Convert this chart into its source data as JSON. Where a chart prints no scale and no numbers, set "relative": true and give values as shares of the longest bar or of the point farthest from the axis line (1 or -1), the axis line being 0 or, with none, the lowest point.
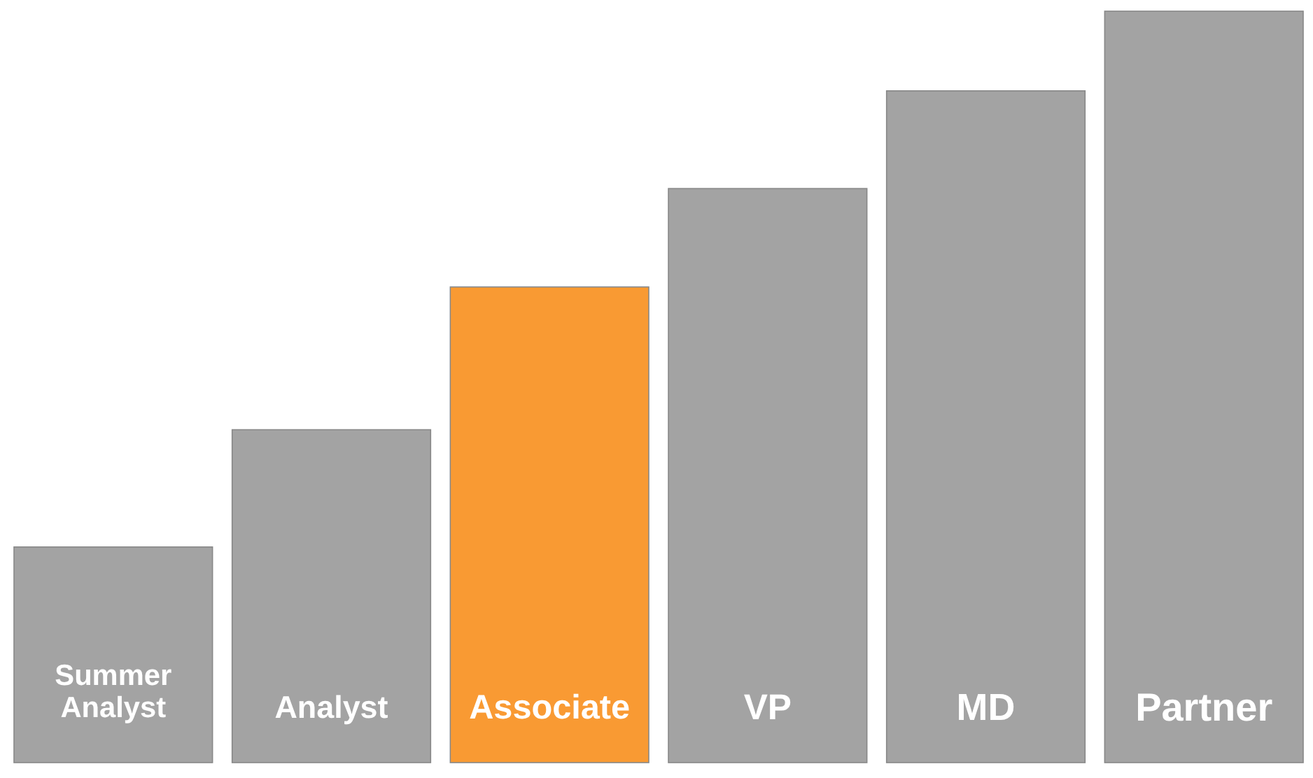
{
  "chart_data": {
    "type": "bar",
    "relative": true,
    "categories": [
      "Summer Analyst",
      "Analyst",
      "Associate",
      "VP",
      "MD",
      "Partner"
    ],
    "values": [
      0.287,
      0.443,
      0.633,
      0.764,
      0.894,
      1
    ],
    "colors": [
      "#a3a3a3",
      "#a3a3a3",
      "#f99a33",
      "#a3a3a3",
      "#a3a3a3",
      "#a3a3a3"
    ]
  }
}
